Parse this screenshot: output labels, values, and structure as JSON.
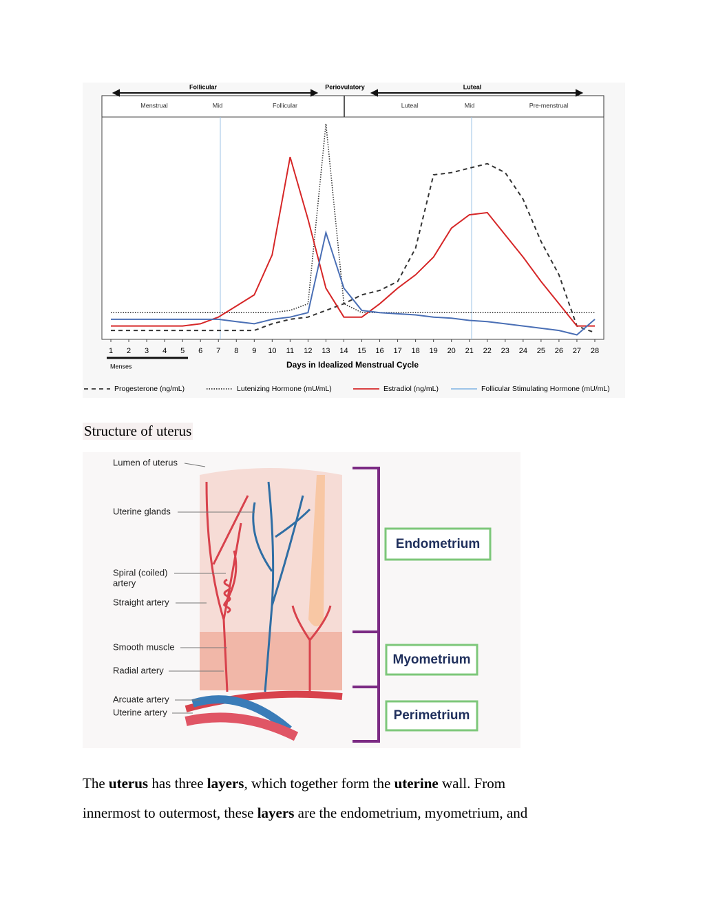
{
  "chart_data": {
    "type": "line",
    "phases": [
      "Follicular",
      "Periovulatory",
      "Luteal"
    ],
    "subphases": [
      "Menstrual",
      "Mid",
      "Follicular",
      "Luteal",
      "Mid",
      "Pre-menstrual"
    ],
    "menses": "Menses",
    "xlabel": "Days in Idealized Menstrual Cycle",
    "x": [
      1,
      2,
      3,
      4,
      5,
      6,
      7,
      8,
      9,
      10,
      11,
      12,
      13,
      14,
      15,
      16,
      17,
      18,
      19,
      20,
      21,
      22,
      23,
      24,
      25,
      26,
      27,
      28
    ],
    "xlim": [
      0.5,
      28.5
    ],
    "xticks": [
      1,
      2,
      3,
      4,
      5,
      6,
      7,
      8,
      9,
      10,
      11,
      12,
      13,
      14,
      15,
      16,
      17,
      18,
      19,
      20,
      21,
      22,
      23,
      24,
      25,
      26,
      27,
      28
    ],
    "ylim": [
      0,
      100
    ],
    "series": [
      {
        "name": "Progesterone (ng/mL)",
        "color": "#333333",
        "style": "dashed",
        "values": [
          4,
          4,
          4,
          4,
          4,
          4,
          4,
          4,
          4,
          7,
          9,
          10,
          13,
          16,
          20,
          22,
          26,
          41,
          74,
          75,
          77,
          79,
          75,
          63,
          44,
          29,
          6,
          3
        ]
      },
      {
        "name": "Lutenizing Hormone (mU/mL)",
        "color": "#333333",
        "style": "dotted",
        "values": [
          12,
          12,
          12,
          12,
          12,
          12,
          12,
          12,
          12,
          12,
          13,
          16,
          97,
          16,
          12,
          12,
          12,
          12,
          12,
          12,
          12,
          12,
          12,
          12,
          12,
          12,
          12,
          12
        ]
      },
      {
        "name": "Estradiol (ng/mL)",
        "color": "#d62728",
        "style": "solid",
        "values": [
          6,
          6,
          6,
          6,
          6,
          7,
          10,
          15,
          20,
          38,
          82,
          54,
          23,
          10,
          10,
          16,
          23,
          29,
          37,
          50,
          56,
          57,
          47,
          37,
          26,
          16,
          6,
          6
        ]
      },
      {
        "name": "Follicular Stimulating Hormone (mU/mL)",
        "color": "#4a6fb5",
        "style": "solid",
        "values": [
          9,
          9,
          9,
          9,
          9,
          9,
          9,
          8,
          7,
          9,
          10,
          12,
          48,
          23,
          13,
          12,
          11.5,
          11,
          10,
          9.5,
          8.5,
          8,
          7,
          6,
          5,
          4,
          2,
          9
        ]
      }
    ]
  },
  "document": {
    "caption": "Structure of uterus",
    "diagram": {
      "labels": [
        "Lumen of uterus",
        "Uterine glands",
        "Spiral (coiled)",
        "artery",
        "Straight artery",
        "Smooth muscle",
        "Radial artery",
        "Arcuate artery",
        "Uterine artery"
      ],
      "layers": [
        "Endometrium",
        "Myometrium",
        "Perimetrium"
      ]
    },
    "paragraph": [
      [
        {
          "text": "The ",
          "bold": false
        },
        {
          "text": "uterus",
          "bold": true
        },
        {
          "text": " has three ",
          "bold": false
        },
        {
          "text": "layers",
          "bold": true
        },
        {
          "text": ", which together form the ",
          "bold": false
        },
        {
          "text": "uterine",
          "bold": true
        },
        {
          "text": " wall. From",
          "bold": false
        }
      ],
      [
        {
          "text": "innermost to outermost, these ",
          "bold": false
        },
        {
          "text": "layers",
          "bold": true
        },
        {
          "text": " are the endometrium, myometrium, and",
          "bold": false
        }
      ]
    ]
  }
}
